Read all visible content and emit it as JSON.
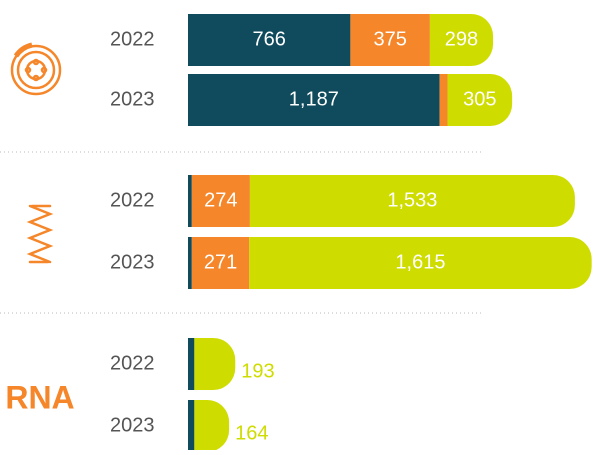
{
  "chart_data": [
    {
      "type": "bar",
      "categories": [
        "2022",
        "2023"
      ],
      "series": [
        {
          "color": "#0f4b5c",
          "values": [
            766,
            1187
          ],
          "value_labels": [
            "766",
            "1,187"
          ]
        },
        {
          "color": "#f5862a",
          "values": [
            375,
            37
          ],
          "value_labels": [
            "375",
            null
          ]
        },
        {
          "color": "#cfdc00",
          "values": [
            298,
            305
          ],
          "value_labels": [
            "298",
            "305"
          ]
        }
      ]
    },
    {
      "type": "bar",
      "categories": [
        "2022",
        "2023"
      ],
      "series": [
        {
          "color": "#0f4b5c",
          "values": [
            18,
            18
          ],
          "value_labels": [
            null,
            null
          ]
        },
        {
          "color": "#f5862a",
          "values": [
            274,
            271
          ],
          "value_labels": [
            "274",
            "271"
          ]
        },
        {
          "color": "#cfdc00",
          "values": [
            1533,
            1615
          ],
          "value_labels": [
            "1,533",
            "1,615"
          ]
        }
      ]
    },
    {
      "type": "bar",
      "label": "RNA",
      "categories": [
        "2022",
        "2023"
      ],
      "series": [
        {
          "color": "#0f4b5c",
          "values": [
            30,
            30
          ],
          "value_labels": [
            null,
            null
          ]
        },
        {
          "color": "#cfdc00",
          "values": [
            193,
            164
          ],
          "value_labels": [
            "193",
            "164"
          ]
        }
      ]
    }
  ]
}
